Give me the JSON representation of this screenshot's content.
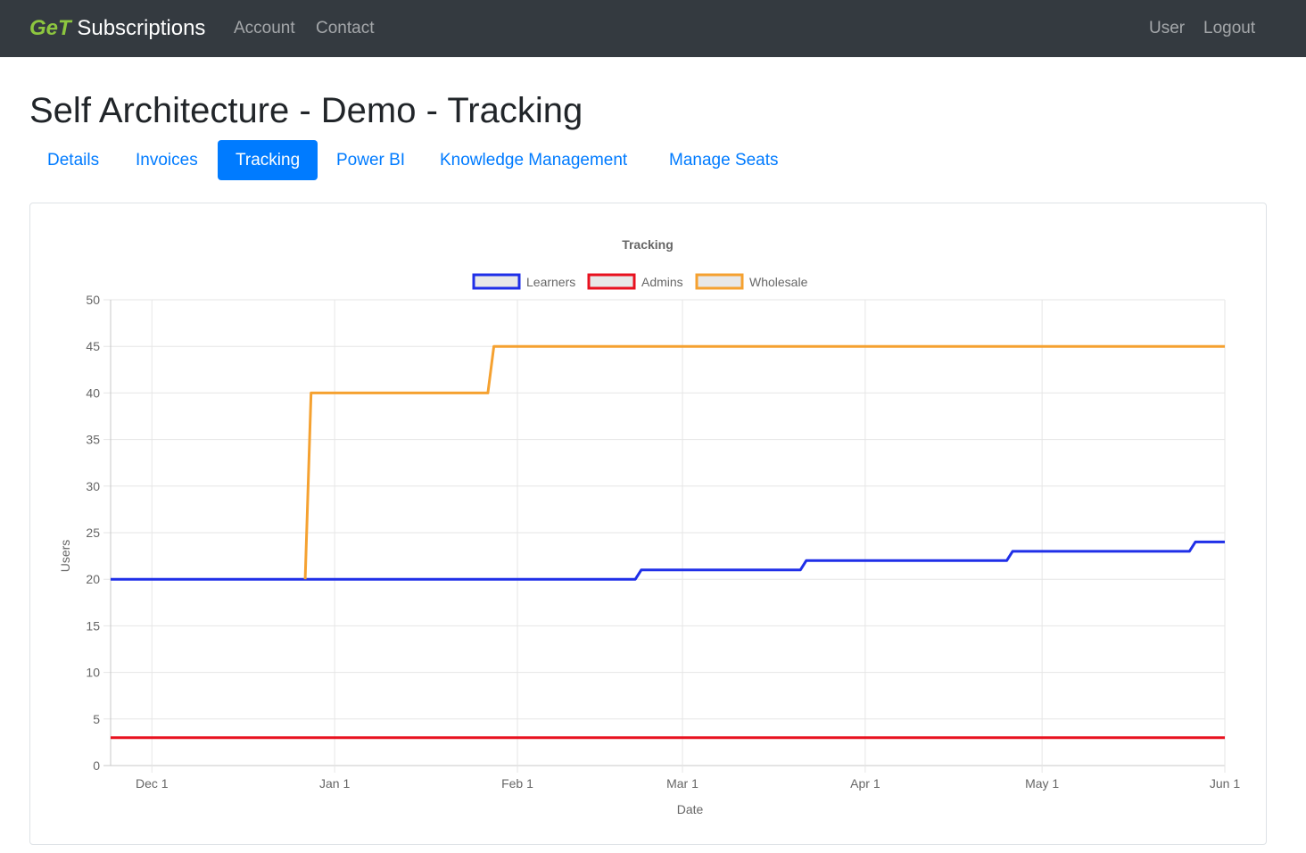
{
  "navbar": {
    "brand_accent": "GeT",
    "brand_rest": " Subscriptions",
    "links": [
      "Account",
      "Contact"
    ],
    "right_links": [
      "User",
      "Logout"
    ]
  },
  "page": {
    "title": "Self Architecture - Demo - Tracking"
  },
  "tabs": [
    {
      "label": "Details",
      "active": false
    },
    {
      "label": "Invoices",
      "active": false
    },
    {
      "label": "Tracking",
      "active": true
    },
    {
      "label": "Power BI",
      "active": false
    },
    {
      "label": "Knowledge Management",
      "active": false
    },
    {
      "label": "Manage Seats",
      "active": false
    }
  ],
  "colors": {
    "navbar_bg": "#343a40",
    "brand_accent": "#8dc63f",
    "primary": "#007bff",
    "learners": "#1f2fe8",
    "admins": "#e8111f",
    "wholesale": "#f5a130"
  },
  "chart_data": {
    "type": "line",
    "title": "Tracking",
    "xlabel": "Date",
    "ylabel": "Users",
    "ylim": [
      0,
      50
    ],
    "yticks": [
      0,
      5,
      10,
      15,
      20,
      25,
      30,
      35,
      40,
      45,
      50
    ],
    "xlim": [
      "2020-11-24",
      "2021-06-01"
    ],
    "xticks": [
      {
        "date": "2020-12-01",
        "label": "Dec 1"
      },
      {
        "date": "2021-01-01",
        "label": "Jan 1"
      },
      {
        "date": "2021-02-01",
        "label": "Feb 1"
      },
      {
        "date": "2021-03-01",
        "label": "Mar 1"
      },
      {
        "date": "2021-04-01",
        "label": "Apr 1"
      },
      {
        "date": "2021-05-01",
        "label": "May 1"
      },
      {
        "date": "2021-06-01",
        "label": "Jun 1"
      }
    ],
    "grid": true,
    "legend_position": "top",
    "series": [
      {
        "name": "Learners",
        "color": "#1f2fe8",
        "points": [
          {
            "x": "2020-11-24",
            "y": 20
          },
          {
            "x": "2021-02-21",
            "y": 20
          },
          {
            "x": "2021-02-22",
            "y": 21
          },
          {
            "x": "2021-03-21",
            "y": 21
          },
          {
            "x": "2021-03-22",
            "y": 22
          },
          {
            "x": "2021-04-25",
            "y": 22
          },
          {
            "x": "2021-04-26",
            "y": 23
          },
          {
            "x": "2021-05-26",
            "y": 23
          },
          {
            "x": "2021-05-27",
            "y": 24
          },
          {
            "x": "2021-06-01",
            "y": 24
          }
        ]
      },
      {
        "name": "Admins",
        "color": "#e8111f",
        "points": [
          {
            "x": "2020-11-24",
            "y": 3
          },
          {
            "x": "2021-06-01",
            "y": 3
          }
        ]
      },
      {
        "name": "Wholesale",
        "color": "#f5a130",
        "points": [
          {
            "x": "2020-12-27",
            "y": 20
          },
          {
            "x": "2020-12-28",
            "y": 40
          },
          {
            "x": "2021-01-27",
            "y": 40
          },
          {
            "x": "2021-01-28",
            "y": 45
          },
          {
            "x": "2021-06-01",
            "y": 45
          }
        ]
      }
    ]
  }
}
